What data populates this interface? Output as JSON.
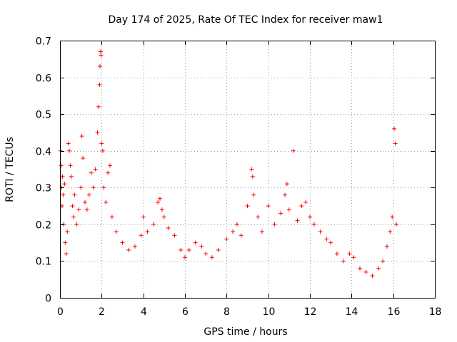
{
  "chart_data": {
    "type": "scatter",
    "title": "Day 174 of 2025, Rate Of TEC Index for receiver maw1",
    "xlabel": "GPS time / hours",
    "ylabel": "ROTI / TECUs",
    "xlim": [
      0,
      18
    ],
    "ylim": [
      0,
      0.7
    ],
    "xticks": [
      0,
      2,
      4,
      6,
      8,
      10,
      12,
      14,
      16,
      18
    ],
    "yticks": [
      0,
      0.1,
      0.2,
      0.3,
      0.4,
      0.5,
      0.6,
      0.7
    ],
    "grid": true,
    "marker": "plus",
    "series": [
      {
        "color": "#ff0000",
        "points": [
          [
            0.02,
            0.4
          ],
          [
            0.05,
            0.36
          ],
          [
            0.08,
            0.3
          ],
          [
            0.1,
            0.25
          ],
          [
            0.12,
            0.33
          ],
          [
            0.15,
            0.28
          ],
          [
            0.18,
            0.2
          ],
          [
            0.22,
            0.31
          ],
          [
            0.25,
            0.15
          ],
          [
            0.3,
            0.12
          ],
          [
            0.35,
            0.18
          ],
          [
            0.4,
            0.42
          ],
          [
            0.45,
            0.4
          ],
          [
            0.5,
            0.36
          ],
          [
            0.55,
            0.33
          ],
          [
            0.6,
            0.25
          ],
          [
            0.65,
            0.22
          ],
          [
            0.7,
            0.28
          ],
          [
            0.8,
            0.2
          ],
          [
            0.9,
            0.24
          ],
          [
            1.0,
            0.3
          ],
          [
            1.05,
            0.44
          ],
          [
            1.1,
            0.38
          ],
          [
            1.2,
            0.26
          ],
          [
            1.3,
            0.24
          ],
          [
            1.4,
            0.28
          ],
          [
            1.5,
            0.34
          ],
          [
            1.6,
            0.3
          ],
          [
            1.7,
            0.35
          ],
          [
            1.8,
            0.45
          ],
          [
            1.85,
            0.52
          ],
          [
            1.9,
            0.58
          ],
          [
            1.92,
            0.63
          ],
          [
            1.95,
            0.67
          ],
          [
            1.97,
            0.66
          ],
          [
            2.0,
            0.42
          ],
          [
            2.05,
            0.4
          ],
          [
            2.1,
            0.3
          ],
          [
            2.2,
            0.26
          ],
          [
            2.3,
            0.34
          ],
          [
            2.4,
            0.36
          ],
          [
            2.5,
            0.22
          ],
          [
            2.7,
            0.18
          ],
          [
            3.0,
            0.15
          ],
          [
            3.3,
            0.13
          ],
          [
            3.6,
            0.14
          ],
          [
            3.9,
            0.17
          ],
          [
            4.0,
            0.22
          ],
          [
            4.2,
            0.18
          ],
          [
            4.5,
            0.2
          ],
          [
            4.7,
            0.26
          ],
          [
            4.8,
            0.27
          ],
          [
            4.9,
            0.24
          ],
          [
            5.0,
            0.22
          ],
          [
            5.2,
            0.19
          ],
          [
            5.5,
            0.17
          ],
          [
            5.8,
            0.13
          ],
          [
            6.0,
            0.11
          ],
          [
            6.2,
            0.13
          ],
          [
            6.5,
            0.15
          ],
          [
            6.8,
            0.14
          ],
          [
            7.0,
            0.12
          ],
          [
            7.3,
            0.11
          ],
          [
            7.6,
            0.13
          ],
          [
            8.0,
            0.16
          ],
          [
            8.3,
            0.18
          ],
          [
            8.5,
            0.2
          ],
          [
            8.7,
            0.17
          ],
          [
            9.0,
            0.25
          ],
          [
            9.2,
            0.35
          ],
          [
            9.25,
            0.33
          ],
          [
            9.3,
            0.28
          ],
          [
            9.5,
            0.22
          ],
          [
            9.7,
            0.18
          ],
          [
            10.0,
            0.25
          ],
          [
            10.3,
            0.2
          ],
          [
            10.6,
            0.23
          ],
          [
            10.8,
            0.28
          ],
          [
            10.9,
            0.31
          ],
          [
            11.0,
            0.24
          ],
          [
            11.2,
            0.4
          ],
          [
            11.4,
            0.21
          ],
          [
            11.6,
            0.25
          ],
          [
            11.8,
            0.26
          ],
          [
            12.0,
            0.22
          ],
          [
            12.2,
            0.2
          ],
          [
            12.5,
            0.18
          ],
          [
            12.8,
            0.16
          ],
          [
            13.0,
            0.15
          ],
          [
            13.3,
            0.12
          ],
          [
            13.6,
            0.1
          ],
          [
            13.9,
            0.12
          ],
          [
            14.1,
            0.11
          ],
          [
            14.4,
            0.08
          ],
          [
            14.7,
            0.07
          ],
          [
            15.0,
            0.06
          ],
          [
            15.3,
            0.08
          ],
          [
            15.5,
            0.1
          ],
          [
            15.7,
            0.14
          ],
          [
            15.85,
            0.18
          ],
          [
            15.95,
            0.22
          ],
          [
            16.05,
            0.46
          ],
          [
            16.1,
            0.42
          ],
          [
            16.15,
            0.2
          ]
        ]
      }
    ]
  }
}
